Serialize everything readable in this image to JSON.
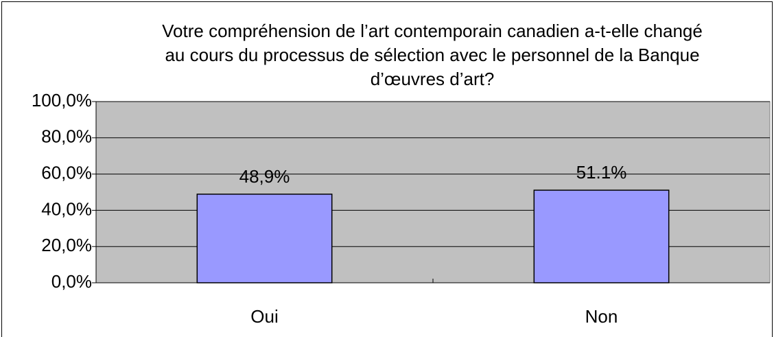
{
  "chart_data": {
    "type": "bar",
    "title": [
      "Votre compréhension de l’art contemporain canadien a-t-elle changé",
      "au cours du processus de sélection avec le personnel de la Banque",
      "d’œuvres d’art?"
    ],
    "categories": [
      "Oui",
      "Non"
    ],
    "values": [
      48.9,
      51.1
    ],
    "value_labels": [
      "48,9%",
      "51.1%"
    ],
    "color": "#9999ff",
    "ylim": [
      0,
      100
    ],
    "yticks": [
      {
        "value": 0,
        "label": "0,0%"
      },
      {
        "value": 20,
        "label": "20,0%"
      },
      {
        "value": 40,
        "label": "40,0%"
      },
      {
        "value": 60,
        "label": "60,0%"
      },
      {
        "value": 80,
        "label": "80,0%"
      },
      {
        "value": 100,
        "label": "100,0%"
      }
    ],
    "grid": true
  }
}
